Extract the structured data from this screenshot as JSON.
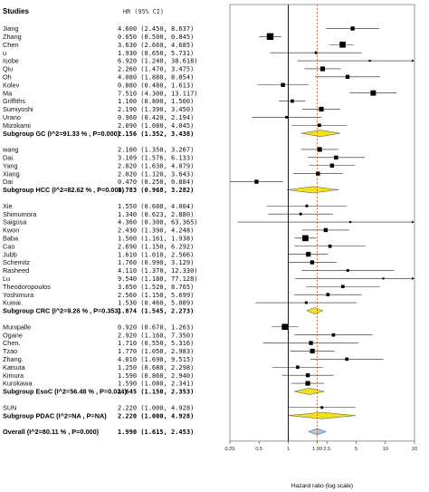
{
  "chart_data": {
    "type": "forest",
    "header": {
      "studies": "Studies",
      "stat": "HR (95% CI)"
    },
    "xlabel": "Hazard ratio (log scale)",
    "xscale": "log",
    "xlim": [
      0.25,
      20
    ],
    "xticks": [
      0.25,
      0.5,
      1,
      1.99,
      2.5,
      5,
      10,
      20
    ],
    "xtick_labels": [
      "0.25",
      "0.5",
      "1",
      "1.99",
      "2.5",
      "5",
      "10",
      "20"
    ],
    "null_line": 1,
    "overall_line": 1.99,
    "rows": [
      {
        "kind": "study",
        "label": "Jiang",
        "hr": 4.6,
        "lo": 2.45,
        "hi": 8.637,
        "text": "4.600 (2.450, 8.637)",
        "w": 4
      },
      {
        "kind": "study",
        "label": "Zhang",
        "hr": 0.65,
        "lo": 0.5,
        "hi": 0.845,
        "text": "0.650 (0.500, 0.845)",
        "w": 8
      },
      {
        "kind": "study",
        "label": "Chen",
        "hr": 3.63,
        "lo": 2.66,
        "hi": 4.685,
        "text": "3.630 (2.660, 4.685)",
        "w": 7
      },
      {
        "kind": "study",
        "label": "u",
        "hr": 1.93,
        "lo": 0.65,
        "hi": 5.731,
        "text": "1.930 (0.650, 5.731)",
        "w": 2
      },
      {
        "kind": "study",
        "label": "Isobe",
        "hr": 6.92,
        "lo": 1.24,
        "hi": 38.618,
        "text": "6.920 (1.240, 38.618)",
        "w": 1
      },
      {
        "kind": "study",
        "label": "Qiu",
        "hr": 2.26,
        "lo": 1.47,
        "hi": 3.475,
        "text": "2.260 (1.470, 3.475)",
        "w": 5
      },
      {
        "kind": "study",
        "label": "Oh",
        "hr": 4.08,
        "lo": 1.88,
        "hi": 8.854,
        "text": "4.080 (1.880, 8.854)",
        "w": 4
      },
      {
        "kind": "study",
        "label": "Kolev",
        "hr": 0.88,
        "lo": 0.48,
        "hi": 1.613,
        "text": "0.880 (0.480, 1.613)",
        "w": 4
      },
      {
        "kind": "study",
        "label": "Ma",
        "hr": 7.51,
        "lo": 4.3,
        "hi": 13.117,
        "text": "7.510 (4.300, 13.117)",
        "w": 6
      },
      {
        "kind": "study",
        "label": "Griffiths",
        "hr": 1.1,
        "lo": 0.8,
        "hi": 1.5,
        "text": "1.100 (0.800, 1.500)",
        "w": 3
      },
      {
        "kind": "study",
        "label": "Sumiyoshi",
        "hr": 2.19,
        "lo": 1.39,
        "hi": 3.45,
        "text": "2.190 (1.390, 3.450)",
        "w": 5
      },
      {
        "kind": "study",
        "label": "Urano",
        "hr": 0.96,
        "lo": 0.42,
        "hi": 2.194,
        "text": "0.960 (0.420, 2.194)",
        "w": 2
      },
      {
        "kind": "study",
        "label": "Mizokami",
        "hr": 2.09,
        "lo": 1.08,
        "hi": 4.045,
        "text": "2.090 (1.080, 4.045)",
        "w": 3
      },
      {
        "kind": "subgroup",
        "label": "Subgroup GC (I^2=91.33 % , P=0.000)",
        "hr": 2.156,
        "lo": 1.352,
        "hi": 3.438,
        "text": "2.156 (1.352, 3.438)",
        "fill": "#f0e21a"
      },
      {
        "kind": "gap"
      },
      {
        "kind": "study",
        "label": "wang",
        "hr": 2.1,
        "lo": 1.35,
        "hi": 3.267,
        "text": "2.100 (1.350, 3.267)",
        "w": 5
      },
      {
        "kind": "study",
        "label": "Dai.",
        "hr": 3.109,
        "lo": 1.576,
        "hi": 6.133,
        "text": "3.109 (1.576, 6.133)",
        "w": 4
      },
      {
        "kind": "study",
        "label": "Yang",
        "hr": 2.82,
        "lo": 1.63,
        "hi": 4.879,
        "text": "2.820 (1.630, 4.879)",
        "w": 4
      },
      {
        "kind": "study",
        "label": "Xiang",
        "hr": 2.02,
        "lo": 1.12,
        "hi": 3.643,
        "text": "2.020 (1.120, 3.643)",
        "w": 4
      },
      {
        "kind": "study",
        "label": "Dai",
        "hr": 0.47,
        "lo": 0.25,
        "hi": 0.884,
        "text": "0.470 (0.250, 0.884)",
        "w": 4
      },
      {
        "kind": "subgroup",
        "label": "Subgroup HCC (I^2=82.62 % , P=0.000)",
        "hr": 1.783,
        "lo": 0.968,
        "hi": 3.282,
        "text": "1.783 (0.968, 3.282)",
        "fill": "#f0e21a"
      },
      {
        "kind": "gap"
      },
      {
        "kind": "study",
        "label": "Xie",
        "hr": 1.55,
        "lo": 0.6,
        "hi": 4.004,
        "text": "1.550 (0.600, 4.004)",
        "w": 2
      },
      {
        "kind": "study",
        "label": "Shimumora",
        "hr": 1.34,
        "lo": 0.623,
        "hi": 2.88,
        "text": "1.340 (0.623, 2.880)",
        "w": 2
      },
      {
        "kind": "study",
        "label": "Saigusa",
        "hr": 4.36,
        "lo": 0.3,
        "hi": 63.365,
        "text": "4.360 (0.300, 63.365)",
        "w": 1
      },
      {
        "kind": "study",
        "label": "Kwon",
        "hr": 2.43,
        "lo": 1.39,
        "hi": 4.248,
        "text": "2.430 (1.390, 4.248)",
        "w": 4
      },
      {
        "kind": "study",
        "label": "Baba",
        "hr": 1.5,
        "lo": 1.161,
        "hi": 1.938,
        "text": "1.500 (1.161, 1.938)",
        "w": 7
      },
      {
        "kind": "study",
        "label": "Cao",
        "hr": 2.69,
        "lo": 1.15,
        "hi": 6.292,
        "text": "2.690 (1.150, 6.292)",
        "w": 3
      },
      {
        "kind": "study",
        "label": "Jubb",
        "hr": 1.61,
        "lo": 1.01,
        "hi": 2.566,
        "text": "1.610 (1.010, 2.566)",
        "w": 5
      },
      {
        "kind": "study",
        "label": "Schemitz",
        "hr": 1.76,
        "lo": 0.99,
        "hi": 3.129,
        "text": "1.760 (0.990, 3.129)",
        "w": 4
      },
      {
        "kind": "study",
        "label": "Rasheed",
        "hr": 4.11,
        "lo": 1.37,
        "hi": 12.33,
        "text": "4.110 (1.370, 12.330)",
        "w": 2
      },
      {
        "kind": "study",
        "label": "Lu",
        "hr": 9.54,
        "lo": 1.18,
        "hi": 77.128,
        "text": "9.540 (1.180, 77.128)",
        "w": 1
      },
      {
        "kind": "study",
        "label": "Theodoropoulos",
        "hr": 3.65,
        "lo": 1.52,
        "hi": 8.765,
        "text": "3.650 (1.520, 8.765)",
        "w": 3
      },
      {
        "kind": "study",
        "label": "Yoshimura",
        "hr": 2.56,
        "lo": 1.15,
        "hi": 5.699,
        "text": "2.560 (1.150, 5.699)",
        "w": 3
      },
      {
        "kind": "study",
        "label": "Kuwai.",
        "hr": 1.53,
        "lo": 0.46,
        "hi": 5.089,
        "text": "1.530 (0.460, 5.089)",
        "w": 2
      },
      {
        "kind": "subgroup",
        "label": "Subgroup CRC (I^2=9.26 % , P=0.353)",
        "hr": 1.874,
        "lo": 1.545,
        "hi": 2.273,
        "text": "1.874 (1.545, 2.273)",
        "fill": "#f0e21a"
      },
      {
        "kind": "gap"
      },
      {
        "kind": "study",
        "label": "Munipalle",
        "hr": 0.92,
        "lo": 0.67,
        "hi": 1.263,
        "text": "0.920 (0.670, 1.263)",
        "w": 7
      },
      {
        "kind": "study",
        "label": "Ogane",
        "hr": 2.92,
        "lo": 1.16,
        "hi": 7.35,
        "text": "2.920 (1.160, 7.350)",
        "w": 3
      },
      {
        "kind": "study",
        "label": "Chen.",
        "hr": 1.71,
        "lo": 0.55,
        "hi": 5.316,
        "text": "1.710 (0.550, 5.316)",
        "w": 4
      },
      {
        "kind": "study",
        "label": "Tzao",
        "hr": 1.77,
        "lo": 1.05,
        "hi": 2.983,
        "text": "1.770 (1.050, 2.983)",
        "w": 5
      },
      {
        "kind": "study",
        "label": "Zhang.",
        "hr": 4.01,
        "lo": 1.69,
        "hi": 9.515,
        "text": "4.010 (1.690, 9.515)",
        "w": 3
      },
      {
        "kind": "study",
        "label": "Katsuta",
        "hr": 1.25,
        "lo": 0.68,
        "hi": 2.298,
        "text": "1.250 (0.680, 2.298)",
        "w": 3
      },
      {
        "kind": "study",
        "label": "Kimura",
        "hr": 1.59,
        "lo": 0.86,
        "hi": 2.94,
        "text": "1.590 (0.860, 2.940)",
        "w": 4
      },
      {
        "kind": "study",
        "label": "Kurokawa",
        "hr": 1.59,
        "lo": 1.08,
        "hi": 2.341,
        "text": "1.590 (1.080, 2.341)",
        "w": 5
      },
      {
        "kind": "subgroup",
        "label": "Subgroup EsoC (I^2=56.48 % , P=0.024)",
        "hr": 1.645,
        "lo": 1.15,
        "hi": 2.353,
        "text": "1.645 (1.150, 2.353)",
        "fill": "#f0e21a"
      },
      {
        "kind": "gap"
      },
      {
        "kind": "study",
        "label": "SUN",
        "hr": 2.22,
        "lo": 1.0,
        "hi": 4.928,
        "text": "2.220 (1.000, 4.928)",
        "w": 2
      },
      {
        "kind": "subgroup",
        "label": "Subgroup PDAC (I^2=NA , P=NA)",
        "hr": 2.22,
        "lo": 1.0,
        "hi": 4.928,
        "text": "2.220 (1.000, 4.928)",
        "fill": "#f0e21a"
      },
      {
        "kind": "gap"
      },
      {
        "kind": "overall",
        "label": "Overall (I^2=80.11 % , P=0.000)",
        "hr": 1.99,
        "lo": 1.615,
        "hi": 2.453,
        "text": "1.990 (1.615, 2.453)",
        "fill": "#a8c8e0"
      }
    ]
  }
}
